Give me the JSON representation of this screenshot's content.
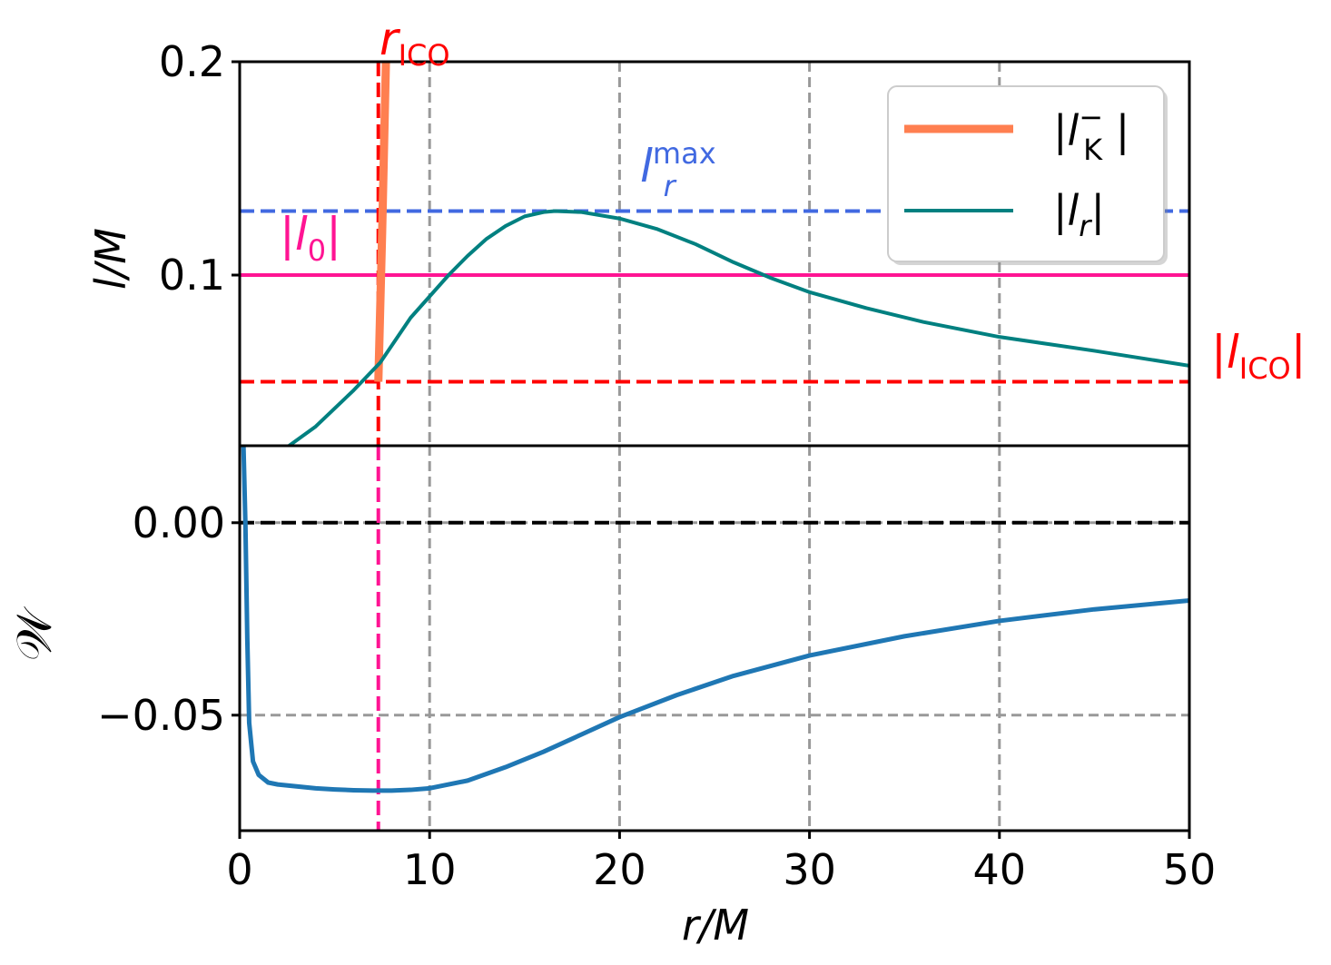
{
  "chart_data": [
    {
      "type": "line",
      "panel": "top",
      "xlabel_parts": {
        "base": "r/M"
      },
      "ylabel_parts": {
        "base": "l/M"
      },
      "xlim": [
        0,
        50
      ],
      "ylim": [
        0.02,
        0.2
      ],
      "yticks": [
        0.1,
        0.2
      ],
      "ytick_labels": [
        "0.1",
        "0.2"
      ],
      "xticks": [
        0,
        10,
        20,
        30,
        40,
        50
      ],
      "grid": "vertical dashed gray at x ticks",
      "legend_placement": "top-right",
      "colors": {
        "l_K": "#ff7f50",
        "l_r": "#008080",
        "l_r_max": "#4169e1",
        "l_0": "#ff1493",
        "l_ICO": "#ff0000"
      },
      "series": [
        {
          "name": "|l_K^-|",
          "legend_parts": {
            "pre": "|",
            "base": "l",
            "sub": "K",
            "sup": "−",
            "post": " |"
          },
          "x": [
            7.3,
            7.5,
            7.7
          ],
          "y": [
            0.05,
            0.12,
            0.2
          ]
        },
        {
          "name": "|l_r|",
          "legend_parts": {
            "pre": "|",
            "base": "l",
            "sub": "r",
            "post": "|"
          },
          "x": [
            2.6,
            4,
            6,
            7.4,
            9,
            10,
            11,
            12,
            13,
            14,
            15,
            16,
            16.6,
            18,
            20,
            22,
            24,
            26,
            28,
            30,
            33,
            36,
            40,
            45,
            50
          ],
          "y": [
            0.02,
            0.029,
            0.046,
            0.059,
            0.08,
            0.09,
            0.1,
            0.109,
            0.117,
            0.123,
            0.1275,
            0.1295,
            0.13,
            0.1295,
            0.1265,
            0.1215,
            0.1145,
            0.106,
            0.0985,
            0.092,
            0.0845,
            0.078,
            0.071,
            0.0645,
            0.0575
          ]
        }
      ],
      "hlines": [
        {
          "label_parts": {
            "base": "l",
            "sub": "r",
            "sup": "max"
          },
          "y": 0.13,
          "style": "dashed"
        },
        {
          "label_parts": {
            "pre": "|",
            "base": "l",
            "sub": "0",
            "post": "|"
          },
          "y": 0.1,
          "style": "solid"
        },
        {
          "label_parts": {
            "pre": "|",
            "base": "l",
            "sub": "ICO",
            "post": "|"
          },
          "y": 0.05,
          "style": "dashed"
        }
      ],
      "vlines": [
        {
          "label_parts": {
            "base": "r",
            "sub": "ICO"
          },
          "x": 7.3,
          "style": "dashed"
        }
      ]
    },
    {
      "type": "line",
      "panel": "bottom",
      "xlabel_parts": {
        "base": "r/M"
      },
      "ylabel_parts": {
        "base": "𝒲"
      },
      "xlim": [
        0,
        50
      ],
      "ylim": [
        -0.08,
        0.02
      ],
      "yticks": [
        0.0,
        -0.05
      ],
      "ytick_labels": [
        "0.00",
        "−0.05"
      ],
      "xticks": [
        0,
        10,
        20,
        30,
        40,
        50
      ],
      "xtick_labels": [
        "0",
        "10",
        "20",
        "30",
        "40",
        "50"
      ],
      "colors": {
        "W": "#1f77b4",
        "zero": "#000000",
        "vline": "#ff1493",
        "grid": "#999999"
      },
      "series": [
        {
          "x": [
            0.2,
            0.3,
            0.4,
            0.5,
            0.7,
            1.0,
            1.5,
            2,
            3,
            4,
            5,
            6,
            7,
            8,
            9,
            10,
            12,
            14,
            16,
            18,
            20,
            23,
            26,
            30,
            35,
            40,
            45,
            50
          ],
          "y": [
            0.02,
            0.0,
            -0.03,
            -0.052,
            -0.062,
            -0.0655,
            -0.0675,
            -0.068,
            -0.0685,
            -0.069,
            -0.0693,
            -0.0695,
            -0.0696,
            -0.0696,
            -0.0694,
            -0.069,
            -0.067,
            -0.0635,
            -0.0595,
            -0.055,
            -0.0505,
            -0.0448,
            -0.0398,
            -0.0345,
            -0.0295,
            -0.0255,
            -0.0225,
            -0.0202
          ]
        }
      ],
      "hlines": [
        {
          "y": 0.0,
          "style": "dashed"
        },
        {
          "y": -0.05,
          "style": "dashed"
        }
      ],
      "vlines": [
        {
          "x": 7.3,
          "style": "dashed"
        }
      ]
    }
  ]
}
